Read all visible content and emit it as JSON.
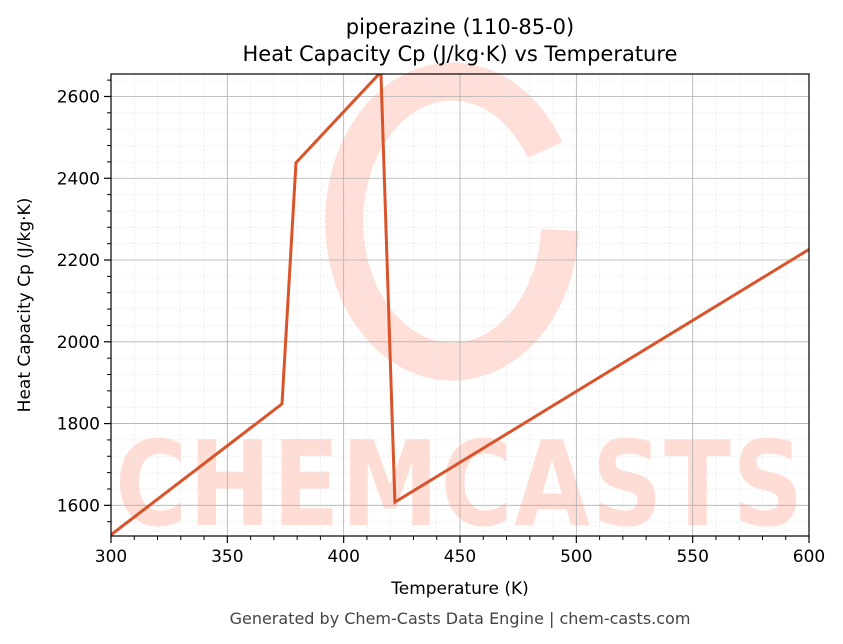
{
  "chart_data": {
    "type": "line",
    "title_line1": "piperazine (110-85-0)",
    "title_line2": "Heat Capacity Cp (J/kg·K) vs Temperature",
    "xlabel": "Temperature (K)",
    "ylabel": "Heat Capacity Cp (J/kg·K)",
    "xlim": [
      300,
      600
    ],
    "ylim": [
      1525,
      2655
    ],
    "xticks": [
      300,
      350,
      400,
      450,
      500,
      550,
      600
    ],
    "yticks": [
      1600,
      1800,
      2000,
      2200,
      2400,
      2600
    ],
    "grid": true,
    "line_color": "#d9542b",
    "series": [
      {
        "x": [
          300,
          373.5,
          379.5,
          416,
          422,
          600
        ],
        "y": [
          1528,
          1848,
          2438,
          2660,
          1608,
          2226
        ]
      }
    ]
  },
  "watermark": {
    "text": "CHEMCASTS",
    "color": "#ffd9d0"
  },
  "footer": {
    "text": "Generated by Chem-Casts Data Engine | chem-casts.com"
  }
}
